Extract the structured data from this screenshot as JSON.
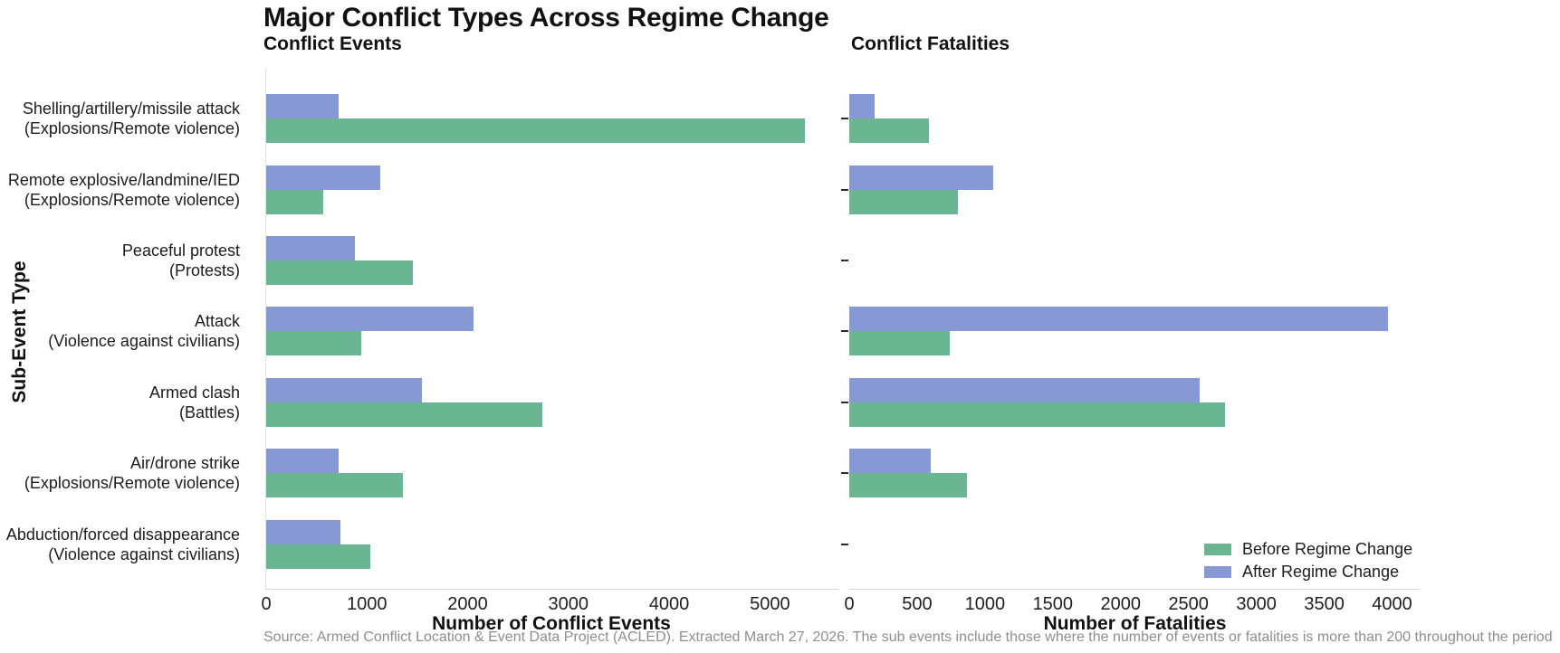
{
  "chart_data": {
    "type": "bar",
    "orientation": "horizontal",
    "grouped": true,
    "grid": false,
    "title": "Major Conflict Types Across Regime Change",
    "y_axis_title": "Sub-Event Type",
    "caption": "Source: Armed Conflict Location & Event Data Project (ACLED). Extracted March 27, 2026. The sub events include those where the number of events or fatalities is more than 200 throughout the period",
    "categories": [
      {
        "label": "Shelling/artillery/missile attack",
        "sublabel": "(Explosions/Remote violence)"
      },
      {
        "label": "Remote explosive/landmine/IED",
        "sublabel": "(Explosions/Remote violence)"
      },
      {
        "label": "Peaceful protest",
        "sublabel": "(Protests)"
      },
      {
        "label": "Attack",
        "sublabel": "(Violence against civilians)"
      },
      {
        "label": "Armed clash",
        "sublabel": "(Battles)"
      },
      {
        "label": "Air/drone strike",
        "sublabel": "(Explosions/Remote violence)"
      },
      {
        "label": "Abduction/forced disappearance",
        "sublabel": "(Violence against civilians)"
      }
    ],
    "legend": {
      "position": "bottom-right",
      "entries": [
        {
          "label": "Before Regime Change",
          "color": "#6ab693"
        },
        {
          "label": "After Regime Change",
          "color": "#8799d5"
        }
      ]
    },
    "panels": [
      {
        "title": "Conflict Events",
        "x_axis_title": "Number of Conflict Events",
        "xlim": [
          0,
          5680
        ],
        "xticks": [
          0,
          1000,
          2000,
          3000,
          4000,
          5000
        ],
        "ytick_marks": false,
        "series": [
          {
            "name": "Before Regime Change",
            "color": "#6ab693",
            "values": [
              5350,
              570,
              1460,
              940,
              2740,
              1360,
              1030
            ]
          },
          {
            "name": "After Regime Change",
            "color": "#8799d5",
            "values": [
              720,
              1130,
              880,
              2060,
              1550,
              720,
              740
            ]
          }
        ]
      },
      {
        "title": "Conflict Fatalities",
        "x_axis_title": "Number of Fatalities",
        "xlim": [
          0,
          4210
        ],
        "xticks": [
          0,
          500,
          1000,
          1500,
          2000,
          2500,
          3000,
          3500,
          4000
        ],
        "ytick_marks": true,
        "series": [
          {
            "name": "Before Regime Change",
            "color": "#6ab693",
            "values": [
              590,
              800,
              0,
              740,
              2770,
              870,
              0
            ]
          },
          {
            "name": "After Regime Change",
            "color": "#8799d5",
            "values": [
              190,
              1060,
              0,
              3970,
              2580,
              600,
              0
            ]
          }
        ]
      }
    ]
  }
}
